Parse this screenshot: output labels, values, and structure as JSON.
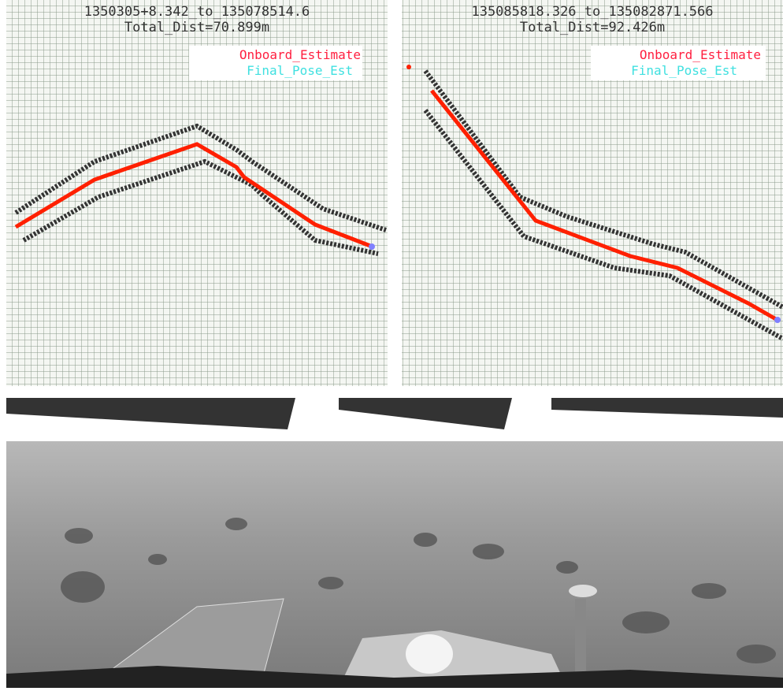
{
  "panels": [
    {
      "title": "1350305+8.342_to_135078514.6",
      "subtitle": "Total_Dist=70.899m",
      "legend": [
        "Onboard_Estimate",
        "Final_Pose_Est"
      ]
    },
    {
      "title": "135085818.326_to_135082871.566",
      "subtitle": "Total_Dist=92.426m",
      "legend": [
        "Onboard_Estimate",
        "Final_Pose_Est"
      ]
    }
  ]
}
